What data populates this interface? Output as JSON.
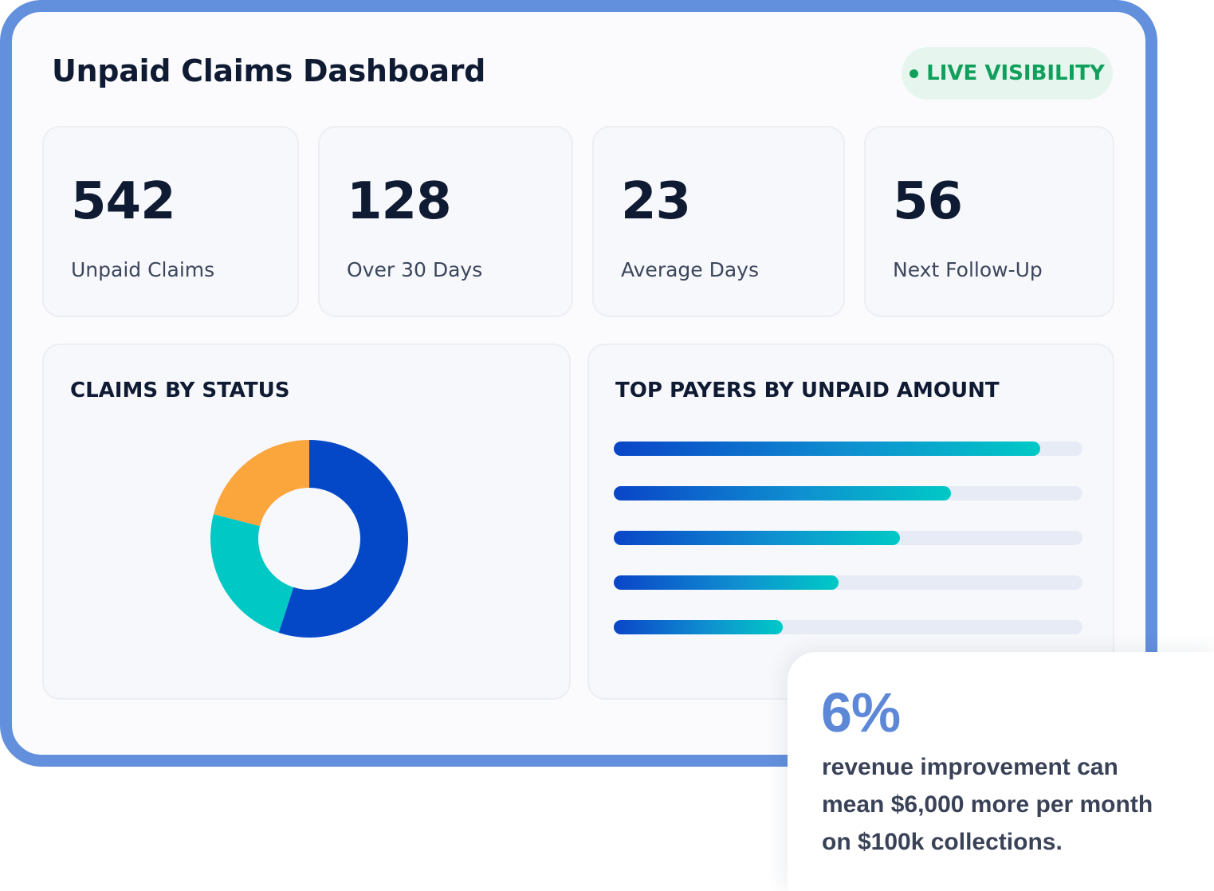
{
  "dashboard": {
    "title": "Unpaid Claims Dashboard",
    "badge": {
      "label": "LIVE VISIBILITY",
      "color": "#10a05c",
      "icon": "status-dot-icon"
    },
    "frame_color": "#6290dc"
  },
  "stats": [
    {
      "value": "542",
      "label": "Unpaid Claims"
    },
    {
      "value": "128",
      "label": "Over 30 Days"
    },
    {
      "value": "23",
      "label": "Average Days"
    },
    {
      "value": "56",
      "label": "Next Follow-Up"
    }
  ],
  "claims_panel": {
    "title": "CLAIMS BY STATUS"
  },
  "payers_panel": {
    "title": "TOP PAYERS BY UNPAID AMOUNT"
  },
  "chart_data": [
    {
      "type": "pie",
      "variant": "donut",
      "title": "CLAIMS BY STATUS",
      "slices": [
        {
          "value": 55,
          "color": "#0448c8"
        },
        {
          "value": 24,
          "color": "#00c8c4"
        },
        {
          "value": 21,
          "color": "#fba53d"
        }
      ]
    },
    {
      "type": "bar",
      "orientation": "horizontal",
      "title": "TOP PAYERS BY UNPAID AMOUNT",
      "values": [
        91,
        72,
        61,
        48,
        36
      ],
      "max": 100,
      "colors": {
        "start": "#0a45c8",
        "end": "#00c9c6",
        "track": "#e7ebf6"
      }
    }
  ],
  "callout": {
    "value": "6%",
    "lines": [
      "revenue improvement can",
      "mean $6,000 more per month",
      "on $100k collections."
    ]
  }
}
